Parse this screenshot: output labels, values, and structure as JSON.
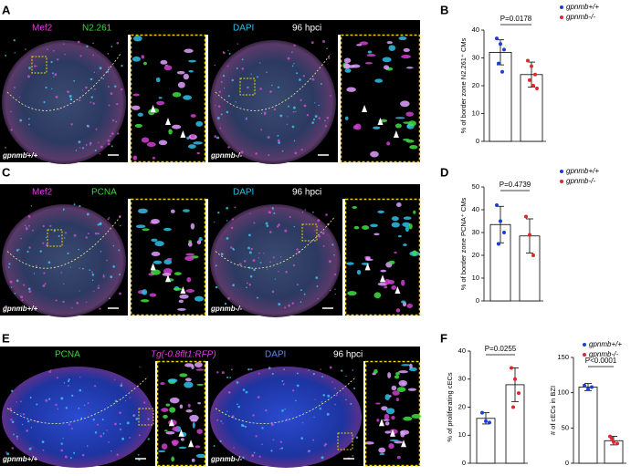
{
  "panels": [
    {
      "letter": "A",
      "header": [
        "Mef2",
        "N2.261",
        "DAPI",
        "96 hpci"
      ],
      "genotypes": [
        "gpnmb+/+",
        "gpnmb-/-"
      ]
    },
    {
      "letter": "C",
      "header": [
        "Mef2",
        "PCNA",
        "DAPI",
        "96 hpci"
      ],
      "genotypes": [
        "gpnmb+/+",
        "gpnmb-/-"
      ]
    },
    {
      "letter": "E",
      "header": [
        "PCNA",
        "Tg(-0.8flt1:RFP)",
        "DAPI",
        "96 hpci"
      ],
      "genotypes": [
        "gpnmb+/+",
        "gpnmb-/-"
      ]
    }
  ],
  "chart_data": [
    {
      "type": "bar",
      "letter": "B",
      "ylabel": "% of border zone N2.261⁺ CMs",
      "annotation": "P=0.0178",
      "ylim": [
        0,
        40
      ],
      "yticks": [
        0,
        10,
        20,
        30,
        40
      ],
      "legend": true,
      "series": [
        {
          "name": "gpnmb+/+",
          "color": "#1a3fd8",
          "values": [
            32
          ],
          "errors": [
            4.5
          ],
          "points": [
            37,
            35,
            33,
            28,
            25
          ]
        },
        {
          "name": "gpnmb-/-",
          "color": "#e0262a",
          "values": [
            24
          ],
          "errors": [
            4.5
          ],
          "points": [
            29,
            27,
            24,
            22,
            20,
            19
          ]
        }
      ]
    },
    {
      "type": "bar",
      "letter": "D",
      "ylabel": "% of border zone PCNA⁺ CMs",
      "annotation": "P=0.4739",
      "ylim": [
        0,
        50
      ],
      "yticks": [
        0,
        10,
        20,
        30,
        40,
        50
      ],
      "legend": true,
      "series": [
        {
          "name": "gpnmb+/+",
          "color": "#1a3fd8",
          "values": [
            33.5
          ],
          "errors": [
            8
          ],
          "points": [
            42,
            35,
            30,
            25
          ]
        },
        {
          "name": "gpnmb-/-",
          "color": "#e0262a",
          "values": [
            28.5
          ],
          "errors": [
            7.5
          ],
          "points": [
            37,
            29,
            20
          ]
        }
      ]
    },
    {
      "type": "bar",
      "letter": "F",
      "ylabel": "% of proliferating cECs",
      "annotation": "P=0.0255",
      "ylim": [
        0,
        40
      ],
      "yticks": [
        0,
        10,
        20,
        30,
        40
      ],
      "legend": false,
      "series": [
        {
          "name": "gpnmb+/+",
          "color": "#1a3fd8",
          "values": [
            16
          ],
          "errors": [
            2
          ],
          "points": [
            18,
            15,
            14.5
          ]
        },
        {
          "name": "gpnmb-/-",
          "color": "#e0262a",
          "values": [
            28
          ],
          "errors": [
            6
          ],
          "points": [
            34,
            30,
            25,
            20
          ]
        }
      ]
    },
    {
      "type": "bar",
      "ylabel": "# of cECs in BZI",
      "annotation": "P<0.0001",
      "ylim": [
        0,
        150
      ],
      "yticks": [
        0,
        50,
        100,
        150
      ],
      "legend": true,
      "series": [
        {
          "name": "gpnmb+/+",
          "color": "#1a3fd8",
          "values": [
            108
          ],
          "errors": [
            5
          ],
          "points": [
            110,
            105,
            108
          ]
        },
        {
          "name": "gpnmb-/-",
          "color": "#e0262a",
          "values": [
            32
          ],
          "errors": [
            6
          ],
          "points": [
            38,
            30,
            28,
            35
          ]
        }
      ]
    }
  ]
}
